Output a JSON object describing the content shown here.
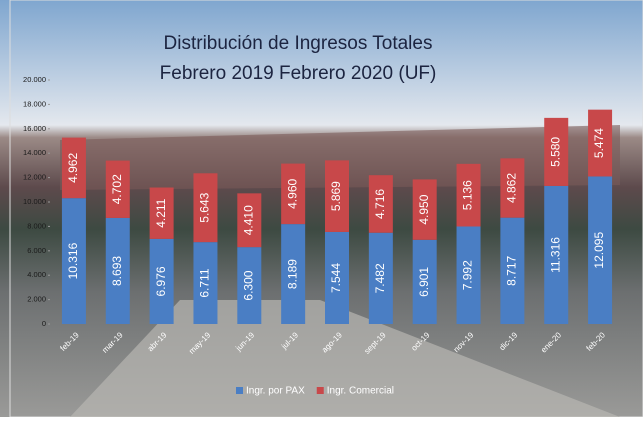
{
  "chart_data": {
    "type": "stacked-bar",
    "title": "Distribución de Ingresos Totales",
    "subtitle": "Febrero 2019 Febrero 2020 (UF)",
    "categories": [
      "feb-19",
      "mar-19",
      "abr-19",
      "may-19",
      "jun-19",
      "jul-19",
      "ago-19",
      "sept-19",
      "oct-19",
      "nov-19",
      "dic-19",
      "ene-20",
      "feb-20"
    ],
    "series": [
      {
        "name": "Ingr. por PAX",
        "color": "#4a7ec4",
        "values": [
          10316,
          8693,
          6976,
          6711,
          6300,
          8189,
          7544,
          7482,
          6901,
          7992,
          8717,
          11316,
          12095
        ],
        "value_labels": [
          "10.316",
          "8.693",
          "6.976",
          "6.711",
          "6.300",
          "8.189",
          "7.544",
          "7.482",
          "6.901",
          "7.992",
          "8.717",
          "11.316",
          "12.095"
        ]
      },
      {
        "name": "Ingr. Comercial",
        "color": "#c8484a",
        "values": [
          4962,
          4702,
          4211,
          5643,
          4410,
          4960,
          5869,
          4716,
          4950,
          5136,
          4862,
          5580,
          5474
        ],
        "value_labels": [
          "4.962",
          "4.702",
          "4.211",
          "5.643",
          "4.410",
          "4.960",
          "5.869",
          "4.716",
          "4.950",
          "5.136",
          "4.862",
          "5.580",
          "5.474"
        ]
      }
    ],
    "ylim": [
      0,
      20000
    ],
    "yticks": [
      0,
      {
        "value": 2000,
        "label": "2.000"
      },
      {
        "value": 4000,
        "label": "4.000"
      },
      {
        "value": 6000,
        "label": "6.000"
      },
      {
        "value": 8000,
        "label": "8.000"
      },
      {
        "value": 10000,
        "label": "10.000"
      },
      {
        "value": 12000,
        "label": "12.000"
      },
      {
        "value": 14000,
        "label": "14.000"
      },
      {
        "value": 16000,
        "label": "16.000"
      },
      {
        "value": 18000,
        "label": "18.000"
      },
      {
        "value": 20000,
        "label": "20.000"
      }
    ]
  }
}
